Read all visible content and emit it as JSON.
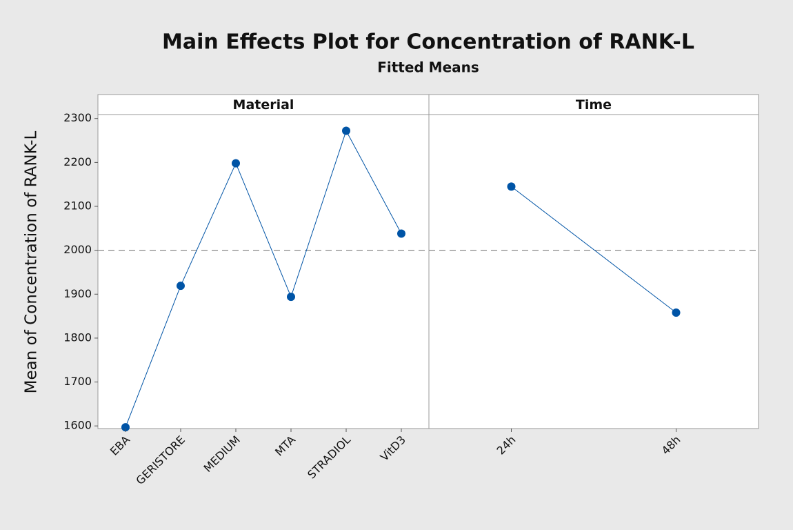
{
  "chart_data": {
    "type": "line",
    "title": "Main Effects Plot for Concentration of RANK-L",
    "subtitle": "Fitted Means",
    "ylabel": "Mean of Concentration of RANK-L",
    "ylim": [
      1594,
      2309
    ],
    "yticks": [
      1600,
      1700,
      1800,
      1900,
      2000,
      2100,
      2200,
      2300
    ],
    "reference_line": 2000,
    "color": "#0054a6",
    "panels": [
      {
        "name": "Material",
        "categories": [
          "EBA",
          "GERISTORE",
          "MEDIUM",
          "MTA",
          "STRADIOL",
          "VitD3"
        ],
        "values": [
          1597,
          1919,
          2198,
          1894,
          2272,
          2038
        ]
      },
      {
        "name": "Time",
        "categories": [
          "24h",
          "48h"
        ],
        "values": [
          2145,
          1858
        ]
      }
    ]
  }
}
